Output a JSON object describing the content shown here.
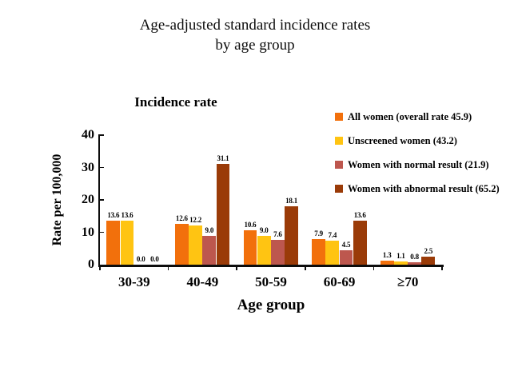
{
  "page": {
    "title_line1": "Age-adjusted standard incidence rates",
    "title_line2": "by age group"
  },
  "chart_data": {
    "type": "bar",
    "title": "Incidence rate",
    "xlabel": "Age group",
    "ylabel": "Rate per 100,000",
    "ylim": [
      0,
      40
    ],
    "yticks": [
      0,
      10,
      20,
      30,
      40
    ],
    "grid": false,
    "legend_position": "right",
    "value_labels": "one_decimal",
    "categories": [
      "30-39",
      "40-49",
      "50-59",
      "60-69",
      "≥70"
    ],
    "series": [
      {
        "name": "All women (overall rate 45.9)",
        "color": "#F2700C",
        "values": [
          13.6,
          12.6,
          10.6,
          7.9,
          1.3
        ]
      },
      {
        "name": "Unscreened women (43.2)",
        "color": "#FFC412",
        "values": [
          13.6,
          12.2,
          9.0,
          7.4,
          1.1
        ]
      },
      {
        "name": "Women with normal result (21.9)",
        "color": "#BD574E",
        "values": [
          0.0,
          9.0,
          7.6,
          4.5,
          0.8
        ]
      },
      {
        "name": "Women with abnormal result (65.2)",
        "color": "#9A3B08",
        "values": [
          0.0,
          31.1,
          18.1,
          13.6,
          2.5
        ]
      }
    ],
    "axis_color": "#0d0d0d"
  }
}
